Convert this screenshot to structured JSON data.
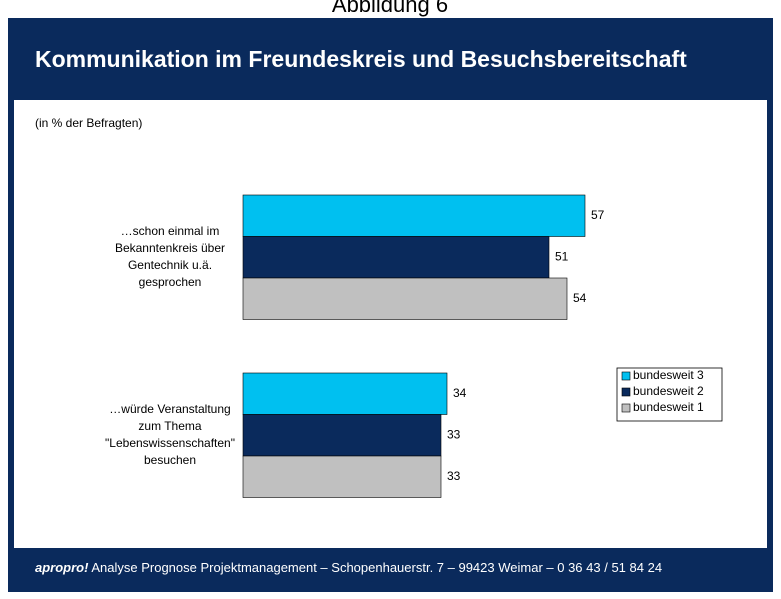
{
  "page_title": "Abbildung 6",
  "footer": {
    "brand": "apropro!",
    "text": "Analyse Prognose Projektmanagement – Schopenhauerstr. 7 – 99423 Weimar – 0 36 43 / 51 84 24"
  },
  "chart_data": {
    "type": "bar",
    "orientation": "horizontal",
    "title": "Kommunikation im Freundeskreis und Besuchsbereitschaft",
    "subtitle": "(in % der Befragten)",
    "categories": [
      "…schon einmal im Bekanntenkreis über Gentechnik u.ä. gesprochen",
      "…würde Veranstaltung zum Thema \"Lebenswissenschaften\" besuchen"
    ],
    "series": [
      {
        "name": "bundesweit 3",
        "color": "#00c0f0",
        "values": [
          57,
          34
        ]
      },
      {
        "name": "bundesweit 2",
        "color": "#0a2a5c",
        "values": [
          51,
          33
        ]
      },
      {
        "name": "bundesweit 1",
        "color": "#c0c0c0",
        "values": [
          54,
          33
        ]
      }
    ],
    "xlim": [
      0,
      60
    ],
    "legend": "right"
  }
}
